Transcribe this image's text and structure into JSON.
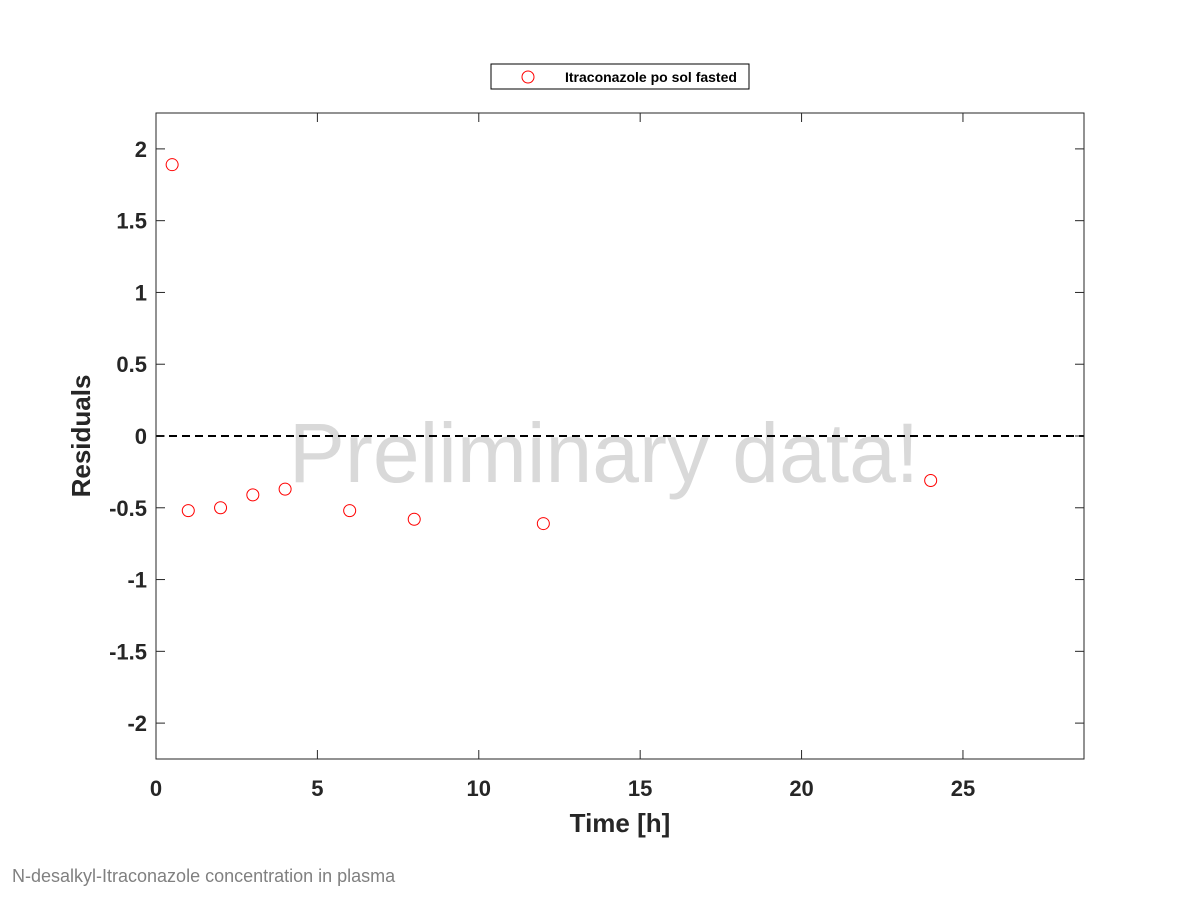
{
  "chart_data": {
    "type": "scatter",
    "xlabel": "Time [h]",
    "ylabel": "Residuals",
    "xlim": [
      0,
      28.75
    ],
    "ylim": [
      -2.25,
      2.25
    ],
    "xticks": [
      0,
      5,
      10,
      15,
      20,
      25
    ],
    "yticks": [
      2,
      1.5,
      1,
      0.5,
      0,
      -0.5,
      -1,
      -1.5,
      -2
    ],
    "reference_line": {
      "y": 0,
      "style": "dashed",
      "color": "#000000"
    },
    "grid": false,
    "legend_position": "top-center outside",
    "series": [
      {
        "name": "Itraconazole po sol fasted",
        "marker": "open-circle",
        "color": "#ff0000",
        "x": [
          0.5,
          1,
          2,
          3,
          4,
          6,
          8,
          12,
          24
        ],
        "y": [
          1.89,
          -0.52,
          -0.5,
          -0.41,
          -0.37,
          -0.52,
          -0.58,
          -0.61,
          -0.31
        ]
      }
    ],
    "watermark": "Preliminary data!"
  },
  "footnote": "N-desalkyl-Itraconazole concentration in plasma"
}
